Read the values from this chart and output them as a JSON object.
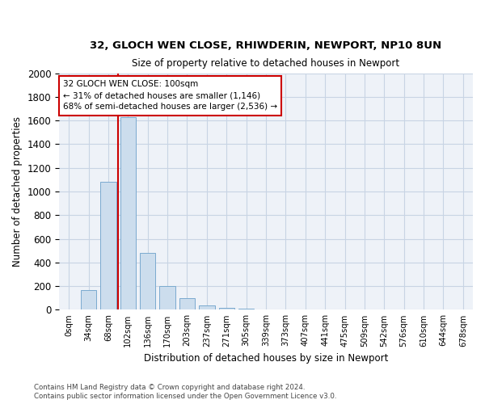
{
  "title1": "32, GLOCH WEN CLOSE, RHIWDERIN, NEWPORT, NP10 8UN",
  "title2": "Size of property relative to detached houses in Newport",
  "xlabel": "Distribution of detached houses by size in Newport",
  "ylabel": "Number of detached properties",
  "categories": [
    "0sqm",
    "34sqm",
    "68sqm",
    "102sqm",
    "136sqm",
    "170sqm",
    "203sqm",
    "237sqm",
    "271sqm",
    "305sqm",
    "339sqm",
    "373sqm",
    "407sqm",
    "441sqm",
    "475sqm",
    "509sqm",
    "542sqm",
    "576sqm",
    "610sqm",
    "644sqm",
    "678sqm"
  ],
  "values": [
    0,
    170,
    1085,
    1630,
    480,
    200,
    100,
    40,
    20,
    10,
    5,
    2,
    2,
    0,
    2,
    0,
    0,
    0,
    0,
    0,
    2
  ],
  "bar_color": "#ccdded",
  "bar_edge_color": "#7aaacf",
  "vline_index": 2.5,
  "annotation_title": "32 GLOCH WEN CLOSE: 100sqm",
  "annotation_line1": "← 31% of detached houses are smaller (1,146)",
  "annotation_line2": "68% of semi-detached houses are larger (2,536) →",
  "annotation_box_color": "#cc0000",
  "vline_color": "#cc0000",
  "ylim": [
    0,
    2000
  ],
  "yticks": [
    0,
    200,
    400,
    600,
    800,
    1000,
    1200,
    1400,
    1600,
    1800,
    2000
  ],
  "grid_color": "#c8d4e4",
  "footer1": "Contains HM Land Registry data © Crown copyright and database right 2024.",
  "footer2": "Contains public sector information licensed under the Open Government Licence v3.0.",
  "bg_color": "#eef2f8"
}
